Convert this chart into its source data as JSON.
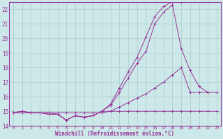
{
  "x": [
    0,
    1,
    2,
    3,
    4,
    5,
    6,
    7,
    8,
    9,
    10,
    11,
    12,
    13,
    14,
    15,
    16,
    17,
    18,
    19,
    20,
    21,
    22,
    23
  ],
  "line1": [
    14.9,
    15.0,
    14.9,
    14.9,
    14.9,
    14.8,
    14.4,
    14.7,
    14.6,
    14.7,
    15.0,
    15.0,
    15.0,
    15.0,
    15.0,
    15.0,
    15.0,
    15.0,
    15.0,
    15.0,
    15.0,
    15.0,
    15.0,
    15.0
  ],
  "line2": [
    14.9,
    15.0,
    14.9,
    14.9,
    14.8,
    14.8,
    14.4,
    14.7,
    14.6,
    14.7,
    15.0,
    15.4,
    16.3,
    17.3,
    18.3,
    19.1,
    21.0,
    21.8,
    22.3,
    19.3,
    17.8,
    16.7,
    16.3,
    16.3
  ],
  "line3": [
    14.9,
    15.0,
    14.9,
    14.9,
    14.8,
    14.8,
    14.4,
    14.7,
    14.6,
    14.7,
    15.0,
    15.5,
    16.6,
    17.7,
    18.7,
    20.1,
    21.5,
    22.2,
    22.5,
    22.5,
    null,
    null,
    null,
    null
  ],
  "line4": [
    14.9,
    14.9,
    14.9,
    14.9,
    14.9,
    14.9,
    14.9,
    14.9,
    14.9,
    14.9,
    14.9,
    15.0,
    15.3,
    15.6,
    15.9,
    16.2,
    16.6,
    17.0,
    17.5,
    18.0,
    16.3,
    16.3,
    16.3,
    null
  ],
  "color": "#993399",
  "bg_color": "#cce8e8",
  "grid_color": "#aacccc",
  "xlabel": "Windchill (Refroidissement éolien,°C)",
  "ylim": [
    14,
    22.5
  ],
  "xlim": [
    -0.5,
    23.5
  ],
  "yticks": [
    14,
    15,
    16,
    17,
    18,
    19,
    20,
    21,
    22
  ],
  "xticks": [
    0,
    1,
    2,
    3,
    4,
    5,
    6,
    7,
    8,
    9,
    10,
    11,
    12,
    13,
    14,
    15,
    16,
    17,
    18,
    19,
    20,
    21,
    22,
    23
  ]
}
